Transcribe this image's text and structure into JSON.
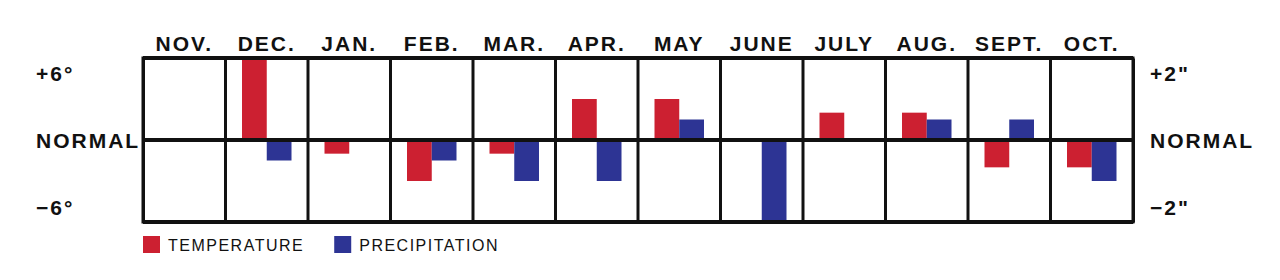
{
  "chart_data": {
    "type": "bar",
    "categories": [
      "NOV.",
      "DEC.",
      "JAN.",
      "FEB.",
      "MAR.",
      "APR.",
      "MAY",
      "JUNE",
      "JULY",
      "AUG.",
      "SEPT.",
      "OCT."
    ],
    "series": [
      {
        "name": "TEMPERATURE",
        "color": "#cc2031",
        "values": [
          0,
          6,
          -1,
          -3,
          -1,
          3,
          3,
          0,
          2,
          2,
          -2,
          -2
        ]
      },
      {
        "name": "PRECIPITATION",
        "color": "#2d3494",
        "axis": "y2",
        "values": [
          0,
          -0.5,
          0,
          -0.5,
          -1,
          -1,
          0.5,
          -2,
          0,
          0.5,
          0.5,
          -1
        ]
      }
    ],
    "ylim": [
      -6,
      6
    ],
    "yticks": [
      {
        "value": 6,
        "label": "+6°"
      },
      {
        "value": 0,
        "label": "NORMAL"
      },
      {
        "value": -6,
        "label": "−6°"
      }
    ],
    "y2lim": [
      -2,
      2
    ],
    "y2ticks": [
      {
        "value": 2,
        "label": "+2\""
      },
      {
        "value": 0,
        "label": "NORMAL"
      },
      {
        "value": -2,
        "label": "−2\""
      }
    ],
    "grid": true,
    "legend": "bottom-left"
  }
}
